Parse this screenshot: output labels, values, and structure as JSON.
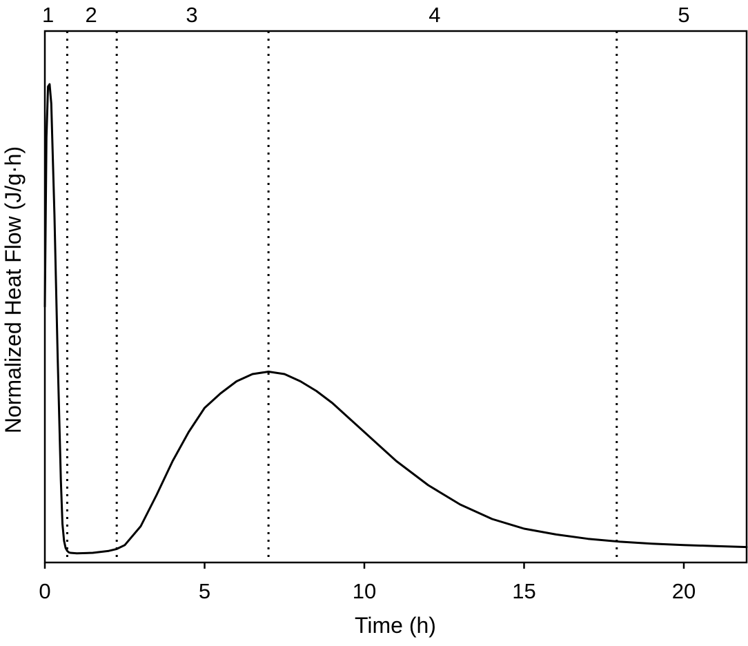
{
  "chart_data": {
    "type": "line",
    "title": "",
    "xlabel": "Time (h)",
    "ylabel": "Normalized Heat Flow (J/g·h)",
    "xlim": [
      0,
      22
    ],
    "ylim": [
      0,
      1.0
    ],
    "y_ticks_shown": false,
    "grid": false,
    "x_ticks": [
      0,
      5,
      10,
      15,
      20
    ],
    "x_tick_labels": [
      "0",
      "5",
      "10",
      "15",
      "20"
    ],
    "region_boundaries": [
      0.7,
      2.25,
      7.0,
      17.9
    ],
    "region_labels": [
      {
        "label": "1",
        "x": 0.1
      },
      {
        "label": "2",
        "x": 1.45
      },
      {
        "label": "3",
        "x": 4.6
      },
      {
        "label": "4",
        "x": 12.2
      },
      {
        "label": "5",
        "x": 20.0
      }
    ],
    "series": [
      {
        "x": [
          0.0,
          0.05,
          0.1,
          0.15,
          0.2,
          0.3,
          0.4,
          0.5,
          0.55,
          0.6,
          0.65,
          0.7,
          0.75,
          0.8,
          1.0,
          1.5,
          2.0,
          2.25,
          2.5,
          3.0,
          3.5,
          4.0,
          4.5,
          5.0,
          5.5,
          6.0,
          6.5,
          7.0,
          7.5,
          8.0,
          8.5,
          9.0,
          9.5,
          10.0,
          10.5,
          11.0,
          12.0,
          13.0,
          14.0,
          15.0,
          16.0,
          17.0,
          18.0,
          19.0,
          20.0,
          21.0,
          22.0
        ],
        "y": [
          0.53,
          0.88,
          0.985,
          0.99,
          0.95,
          0.72,
          0.43,
          0.17,
          0.08,
          0.045,
          0.03,
          0.024,
          0.021,
          0.02,
          0.019,
          0.02,
          0.024,
          0.028,
          0.036,
          0.075,
          0.14,
          0.21,
          0.27,
          0.32,
          0.35,
          0.375,
          0.39,
          0.395,
          0.39,
          0.375,
          0.355,
          0.33,
          0.3,
          0.27,
          0.24,
          0.21,
          0.16,
          0.12,
          0.09,
          0.07,
          0.058,
          0.049,
          0.043,
          0.039,
          0.036,
          0.034,
          0.032
        ]
      }
    ]
  }
}
